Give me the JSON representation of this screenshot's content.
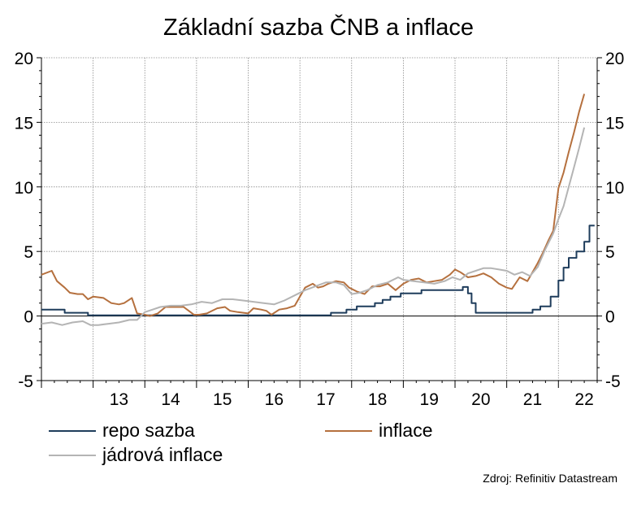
{
  "chart_data": {
    "type": "line",
    "title": "Základní sazba ČNB a inflace",
    "source": "Zdroj: Refinitiv Datastream",
    "ylim": [
      -5,
      20
    ],
    "yticks": [
      -5,
      0,
      5,
      10,
      15,
      20
    ],
    "y_axis_sides": "left and right",
    "x_ticks": [
      "13",
      "14",
      "15",
      "16",
      "17",
      "18",
      "19",
      "20",
      "21",
      "22"
    ],
    "x_range": [
      2012.0,
      2022.75
    ],
    "grid": true,
    "legend_position": "bottom",
    "series": [
      {
        "name": "repo sazba",
        "color": "#1f3d5c",
        "step": true,
        "points": [
          [
            2012.0,
            0.5
          ],
          [
            2012.2,
            0.5
          ],
          [
            2012.45,
            0.25
          ],
          [
            2012.9,
            0.05
          ],
          [
            2017.6,
            0.25
          ],
          [
            2017.9,
            0.5
          ],
          [
            2018.1,
            0.75
          ],
          [
            2018.45,
            1.0
          ],
          [
            2018.6,
            1.25
          ],
          [
            2018.75,
            1.5
          ],
          [
            2018.95,
            1.75
          ],
          [
            2019.35,
            2.0
          ],
          [
            2020.15,
            2.25
          ],
          [
            2020.25,
            1.75
          ],
          [
            2020.32,
            1.0
          ],
          [
            2020.4,
            0.25
          ],
          [
            2021.5,
            0.5
          ],
          [
            2021.65,
            0.75
          ],
          [
            2021.85,
            1.5
          ],
          [
            2022.0,
            2.75
          ],
          [
            2022.1,
            3.75
          ],
          [
            2022.2,
            4.5
          ],
          [
            2022.35,
            5.0
          ],
          [
            2022.5,
            5.75
          ],
          [
            2022.6,
            7.0
          ],
          [
            2022.7,
            7.0
          ]
        ]
      },
      {
        "name": "inflace",
        "color": "#b5703e",
        "step": false,
        "points": [
          [
            2012.0,
            3.2
          ],
          [
            2012.2,
            3.5
          ],
          [
            2012.3,
            2.7
          ],
          [
            2012.45,
            2.2
          ],
          [
            2012.55,
            1.8
          ],
          [
            2012.7,
            1.7
          ],
          [
            2012.8,
            1.7
          ],
          [
            2012.9,
            1.3
          ],
          [
            2013.0,
            1.5
          ],
          [
            2013.2,
            1.4
          ],
          [
            2013.35,
            1.0
          ],
          [
            2013.5,
            0.9
          ],
          [
            2013.6,
            1.0
          ],
          [
            2013.75,
            1.4
          ],
          [
            2013.85,
            0.2
          ],
          [
            2014.0,
            0.1
          ],
          [
            2014.1,
            0.0
          ],
          [
            2014.25,
            0.2
          ],
          [
            2014.4,
            0.7
          ],
          [
            2014.6,
            0.7
          ],
          [
            2014.75,
            0.7
          ],
          [
            2014.85,
            0.4
          ],
          [
            2014.95,
            0.1
          ],
          [
            2015.05,
            0.1
          ],
          [
            2015.2,
            0.2
          ],
          [
            2015.4,
            0.6
          ],
          [
            2015.55,
            0.7
          ],
          [
            2015.65,
            0.4
          ],
          [
            2015.8,
            0.3
          ],
          [
            2016.0,
            0.2
          ],
          [
            2016.1,
            0.6
          ],
          [
            2016.25,
            0.5
          ],
          [
            2016.35,
            0.4
          ],
          [
            2016.45,
            0.1
          ],
          [
            2016.6,
            0.5
          ],
          [
            2016.75,
            0.6
          ],
          [
            2016.9,
            0.8
          ],
          [
            2017.0,
            1.5
          ],
          [
            2017.1,
            2.2
          ],
          [
            2017.25,
            2.5
          ],
          [
            2017.35,
            2.2
          ],
          [
            2017.45,
            2.3
          ],
          [
            2017.55,
            2.5
          ],
          [
            2017.7,
            2.7
          ],
          [
            2017.85,
            2.6
          ],
          [
            2017.95,
            2.2
          ],
          [
            2018.1,
            1.9
          ],
          [
            2018.25,
            1.7
          ],
          [
            2018.4,
            2.3
          ],
          [
            2018.55,
            2.3
          ],
          [
            2018.7,
            2.5
          ],
          [
            2018.85,
            2.0
          ],
          [
            2019.0,
            2.5
          ],
          [
            2019.15,
            2.8
          ],
          [
            2019.3,
            2.9
          ],
          [
            2019.45,
            2.6
          ],
          [
            2019.6,
            2.7
          ],
          [
            2019.75,
            2.8
          ],
          [
            2019.9,
            3.2
          ],
          [
            2020.0,
            3.6
          ],
          [
            2020.1,
            3.4
          ],
          [
            2020.25,
            3.0
          ],
          [
            2020.4,
            3.1
          ],
          [
            2020.55,
            3.3
          ],
          [
            2020.7,
            3.0
          ],
          [
            2020.85,
            2.5
          ],
          [
            2021.0,
            2.2
          ],
          [
            2021.1,
            2.1
          ],
          [
            2021.25,
            3.0
          ],
          [
            2021.4,
            2.7
          ],
          [
            2021.5,
            3.4
          ],
          [
            2021.6,
            4.1
          ],
          [
            2021.7,
            4.9
          ],
          [
            2021.8,
            5.8
          ],
          [
            2021.9,
            6.6
          ],
          [
            2022.0,
            9.9
          ],
          [
            2022.1,
            11.1
          ],
          [
            2022.2,
            12.7
          ],
          [
            2022.3,
            14.2
          ],
          [
            2022.4,
            15.8
          ],
          [
            2022.5,
            17.2
          ]
        ]
      },
      {
        "name": "jádrová inflace",
        "color": "#b4b4b4",
        "step": false,
        "points": [
          [
            2012.0,
            -0.6
          ],
          [
            2012.2,
            -0.5
          ],
          [
            2012.4,
            -0.7
          ],
          [
            2012.6,
            -0.5
          ],
          [
            2012.8,
            -0.4
          ],
          [
            2012.95,
            -0.7
          ],
          [
            2013.1,
            -0.7
          ],
          [
            2013.3,
            -0.6
          ],
          [
            2013.5,
            -0.5
          ],
          [
            2013.7,
            -0.3
          ],
          [
            2013.85,
            -0.3
          ],
          [
            2014.0,
            0.3
          ],
          [
            2014.15,
            0.5
          ],
          [
            2014.3,
            0.7
          ],
          [
            2014.5,
            0.8
          ],
          [
            2014.7,
            0.8
          ],
          [
            2014.9,
            0.9
          ],
          [
            2015.1,
            1.1
          ],
          [
            2015.3,
            1.0
          ],
          [
            2015.5,
            1.3
          ],
          [
            2015.7,
            1.3
          ],
          [
            2015.9,
            1.2
          ],
          [
            2016.1,
            1.1
          ],
          [
            2016.3,
            1.0
          ],
          [
            2016.5,
            0.9
          ],
          [
            2016.7,
            1.2
          ],
          [
            2016.9,
            1.6
          ],
          [
            2017.1,
            2.0
          ],
          [
            2017.3,
            2.3
          ],
          [
            2017.5,
            2.6
          ],
          [
            2017.7,
            2.6
          ],
          [
            2017.85,
            2.4
          ],
          [
            2018.0,
            1.7
          ],
          [
            2018.15,
            1.8
          ],
          [
            2018.3,
            2.0
          ],
          [
            2018.5,
            2.4
          ],
          [
            2018.7,
            2.6
          ],
          [
            2018.9,
            3.0
          ],
          [
            2019.0,
            2.8
          ],
          [
            2019.2,
            2.7
          ],
          [
            2019.4,
            2.6
          ],
          [
            2019.6,
            2.5
          ],
          [
            2019.8,
            2.7
          ],
          [
            2019.95,
            3.0
          ],
          [
            2020.1,
            2.8
          ],
          [
            2020.25,
            3.3
          ],
          [
            2020.4,
            3.5
          ],
          [
            2020.55,
            3.7
          ],
          [
            2020.7,
            3.7
          ],
          [
            2020.85,
            3.6
          ],
          [
            2021.0,
            3.5
          ],
          [
            2021.15,
            3.2
          ],
          [
            2021.3,
            3.4
          ],
          [
            2021.45,
            3.1
          ],
          [
            2021.6,
            3.8
          ],
          [
            2021.75,
            5.2
          ],
          [
            2021.9,
            6.4
          ],
          [
            2022.0,
            7.5
          ],
          [
            2022.1,
            8.5
          ],
          [
            2022.2,
            10.0
          ],
          [
            2022.3,
            11.5
          ],
          [
            2022.4,
            13.0
          ],
          [
            2022.5,
            14.6
          ]
        ]
      }
    ]
  }
}
